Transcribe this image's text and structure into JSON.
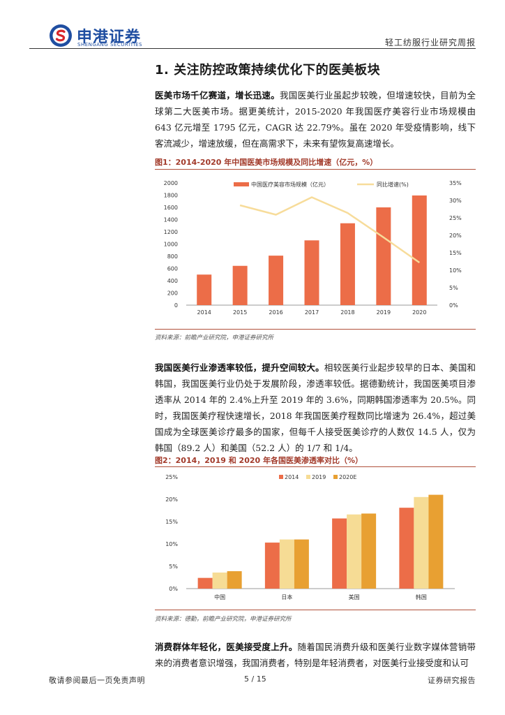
{
  "header": {
    "brand_cn": "申港证券",
    "brand_en": "SHENGANG SECURITIES",
    "report_type": "轻工纺服行业研究周报"
  },
  "section_title": "1. 关注防控政策持续优化下的医美板块",
  "paragraphs": [
    {
      "lead": "医美市场千亿赛道，增长迅速。",
      "body": "我国医美行业虽起步较晚，但增速较快，目前为全球第二大医美市场。据更美统计，2015-2020 年我国医疗美容行业市场规模由 643 亿元增至 1795 亿元，CAGR 达 22.79%。虽在 2020 年受疫情影响，线下客流减少，增速放缓，但在高需求下，未来有望恢复高速增长。"
    },
    {
      "lead": "我国医美行业渗透率较低，提升空间较大。",
      "body": "相较医美行业起步较早的日本、美国和韩国，我国医美行业仍处于发展阶段，渗透率较低。据德勤统计，我国医美项目渗透率从 2014 年的 2.4%上升至 2019 年的 3.6%，同期韩国渗透率为 20.5%。同时，我国医美疗程快速增长，2018 年我国医美疗程数同比增速为 26.4%，超过美国成为全球医美诊疗最多的国家，但每千人接受医美诊疗的人数仅 14.5 人，仅为韩国（89.2 人）和美国（52.2 人）的 1/7 和 1/4。"
    },
    {
      "lead": "消费群体年轻化，医美接受度上升。",
      "body": "随着国民消费升级和医美行业数字媒体营销带来的消费者意识增强，我国消费者，特别是年轻消费者，对医美行业接受度和认可"
    }
  ],
  "figures": [
    {
      "title": "图1：2014-2020 年中国医美市场规模及同比增速（亿元，%）",
      "source": "资料来源：前瞻产业研究院，申港证券研究所"
    },
    {
      "title": "图2：2014，2019 和 2020 年各国医美渗透率对比（%）",
      "source": "资料来源：德勤，前瞻产业研究院，申港证券研究所"
    }
  ],
  "chart_data": [
    {
      "type": "bar",
      "categories": [
        "2014",
        "2015",
        "2016",
        "2017",
        "2018",
        "2019",
        "2020"
      ],
      "series": [
        {
          "name": "中国医疗美容市场规模（亿元）",
          "type": "bar",
          "axis": "left",
          "values": [
            500,
            643,
            810,
            1060,
            1340,
            1600,
            1795
          ]
        },
        {
          "name": "同比增速(%)",
          "type": "line",
          "axis": "right",
          "values": [
            null,
            28.6,
            25.9,
            30.9,
            26.4,
            19.4,
            12.2
          ]
        }
      ],
      "yticks_left": [
        "0",
        "200",
        "400",
        "600",
        "800",
        "1000",
        "1200",
        "1400",
        "1600",
        "1800",
        "2000"
      ],
      "yticks_right": [
        "0%",
        "5%",
        "10%",
        "15%",
        "20%",
        "25%",
        "30%",
        "35%"
      ],
      "ylim_left": [
        0,
        2000
      ],
      "ylim_right": [
        0,
        35
      ],
      "legend": "top",
      "colors": {
        "bar": "#ec6d48",
        "line": "#f7dc9a"
      }
    },
    {
      "type": "bar",
      "categories": [
        "中国",
        "日本",
        "美国",
        "韩国"
      ],
      "series": [
        {
          "name": "2014",
          "values": [
            2.4,
            10.3,
            15.7,
            18.1
          ]
        },
        {
          "name": "2019",
          "values": [
            3.6,
            11.0,
            16.6,
            20.5
          ]
        },
        {
          "name": "2020E",
          "values": [
            3.9,
            11.0,
            16.8,
            21.0
          ]
        }
      ],
      "yticks": [
        "0%",
        "5%",
        "10%",
        "15%",
        "20%",
        "25%"
      ],
      "ylim": [
        0,
        25
      ],
      "legend": "top",
      "colors": [
        "#ec6d48",
        "#f6dc95",
        "#e8a032"
      ]
    }
  ],
  "footer": {
    "disclaimer": "敬请参阅最后一页免责声明",
    "page": "5 / 15",
    "doc_type": "证券研究报告"
  }
}
